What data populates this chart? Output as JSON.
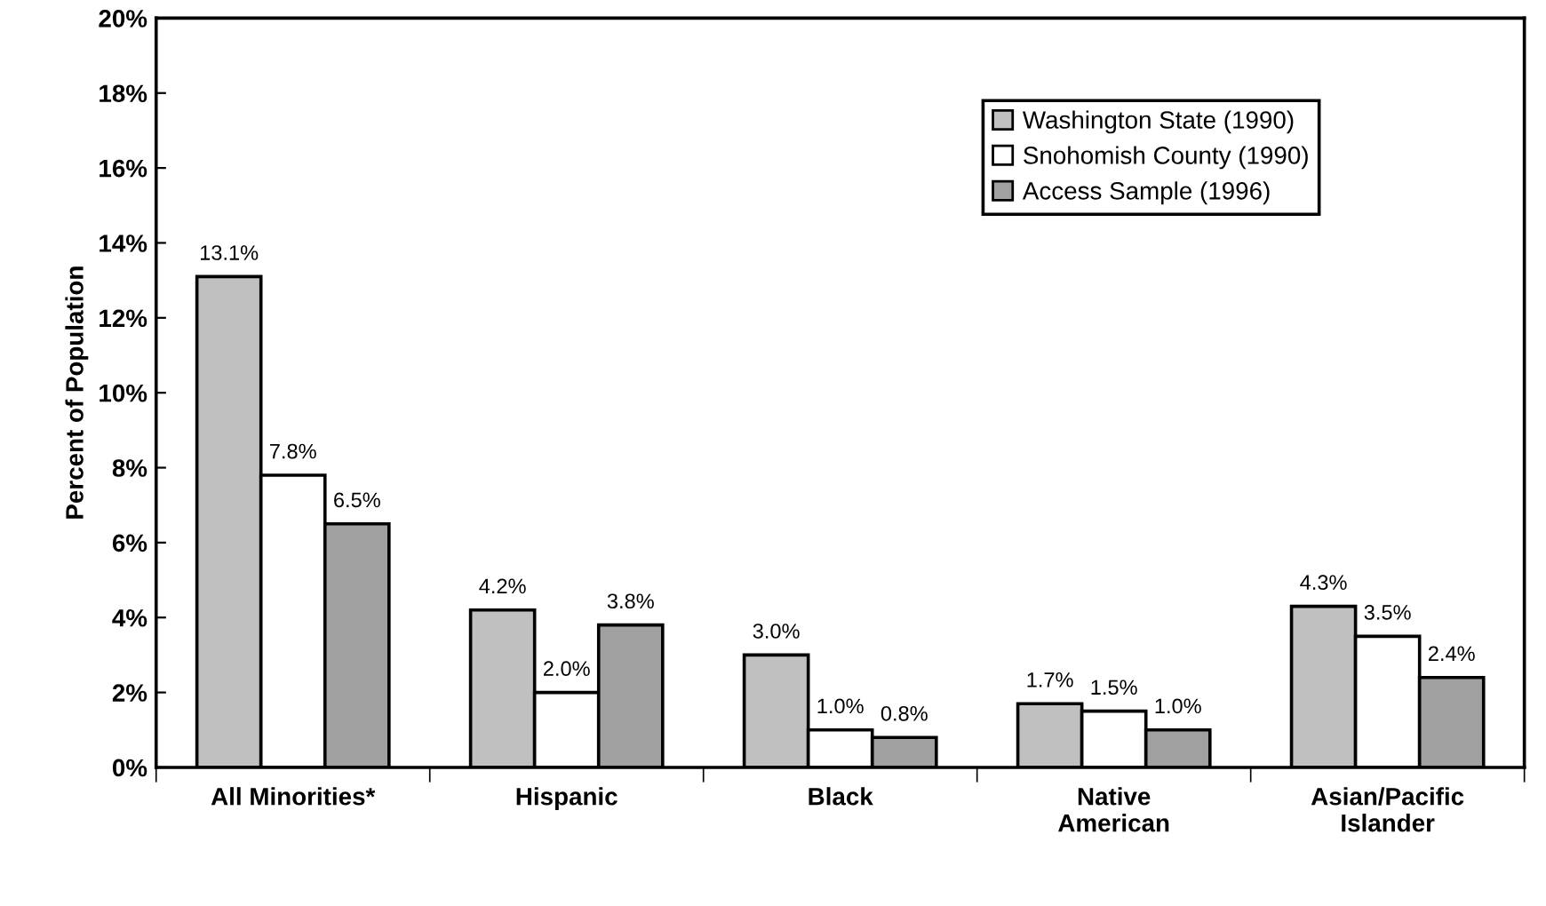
{
  "chart_data": {
    "type": "bar",
    "ylabel": "Percent of Population",
    "categories": [
      "All Minorities*",
      "Hispanic",
      "Black",
      "Native\nAmerican",
      "Asian/Pacific\nIslander"
    ],
    "series": [
      {
        "name": "Washington State (1990)",
        "color": "#c0c0c0",
        "values": [
          13.1,
          4.2,
          3.0,
          1.7,
          4.3
        ],
        "value_labels": [
          "13.1%",
          "4.2%",
          "3.0%",
          "1.7%",
          "4.3%"
        ]
      },
      {
        "name": "Snohomish County (1990)",
        "color": "#ffffff",
        "values": [
          7.8,
          2.0,
          1.0,
          1.5,
          3.5
        ],
        "value_labels": [
          "7.8%",
          "2.0%",
          "1.0%",
          "1.5%",
          "3.5%"
        ]
      },
      {
        "name": "Access Sample (1996)",
        "color": "#a0a0a0",
        "values": [
          6.5,
          3.8,
          0.8,
          1.0,
          2.4
        ],
        "value_labels": [
          "6.5%",
          "3.8%",
          "0.8%",
          "1.0%",
          "2.4%"
        ]
      }
    ],
    "ylim": [
      0,
      20
    ],
    "yticks": [
      {
        "value": 0,
        "label": "0%"
      },
      {
        "value": 2,
        "label": "2%"
      },
      {
        "value": 4,
        "label": "4%"
      },
      {
        "value": 6,
        "label": "6%"
      },
      {
        "value": 8,
        "label": "8%"
      },
      {
        "value": 10,
        "label": "10%"
      },
      {
        "value": 12,
        "label": "12%"
      },
      {
        "value": 14,
        "label": "14%"
      },
      {
        "value": 16,
        "label": "16%"
      },
      {
        "value": 18,
        "label": "18%"
      },
      {
        "value": 20,
        "label": "20%"
      }
    ],
    "grid": false,
    "legend": "top right"
  }
}
